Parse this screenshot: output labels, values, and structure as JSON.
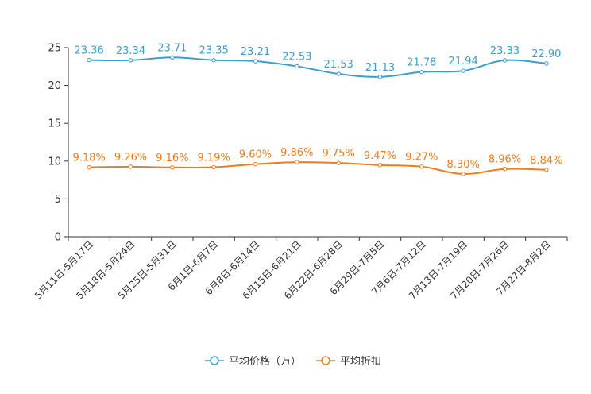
{
  "chart_data": {
    "type": "line",
    "categories": [
      "5月11日-5月17日",
      "5月18日-5月24日",
      "5月25日-5月31日",
      "6月1日-6月7日",
      "6月8日-6月14日",
      "6月15日-6月21日",
      "6月22日-6月28日",
      "6月29日-7月5日",
      "7月6日-7月12日",
      "7月13日-7月19日",
      "7月20日-7月26日",
      "7月27日-8月2日"
    ],
    "series": [
      {
        "name": "平均价格（万）",
        "color": "#3d9dd0",
        "values": [
          23.36,
          23.34,
          23.71,
          23.35,
          23.21,
          22.53,
          21.53,
          21.13,
          21.78,
          21.94,
          23.33,
          22.9
        ],
        "labels": [
          "23.36",
          "23.34",
          "23.71",
          "23.35",
          "23.21",
          "22.53",
          "21.53",
          "21.13",
          "21.78",
          "21.94",
          "23.33",
          "22.90"
        ]
      },
      {
        "name": "平均折扣",
        "color": "#f07c1c",
        "values": [
          9.18,
          9.26,
          9.16,
          9.19,
          9.6,
          9.86,
          9.75,
          9.47,
          9.27,
          8.3,
          8.96,
          8.84
        ],
        "labels": [
          "9.18%",
          "9.26%",
          "9.16%",
          "9.19%",
          "9.60%",
          "9.86%",
          "9.75%",
          "9.47%",
          "9.27%",
          "8.30%",
          "8.96%",
          "8.84%"
        ]
      }
    ],
    "y_ticks": [
      "0",
      "5",
      "10",
      "15",
      "20",
      "25"
    ],
    "ylim": [
      0,
      25
    ],
    "title": "",
    "xlabel": "",
    "ylabel": "",
    "legend_position": "bottom-center",
    "grid": false
  }
}
